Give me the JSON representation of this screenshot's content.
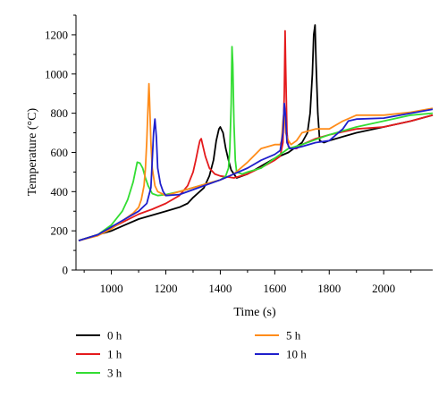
{
  "chart_data": {
    "type": "line",
    "title": "",
    "xlabel": "Time (s)",
    "ylabel": "Temperature (°C)",
    "xlim": [
      870,
      2180
    ],
    "ylim": [
      0,
      1300
    ],
    "xticks": [
      1000,
      1200,
      1400,
      1600,
      1800,
      2000
    ],
    "yticks": [
      0,
      200,
      400,
      600,
      800,
      1000,
      1200
    ],
    "grid": false,
    "legend_position": "bottom",
    "series": [
      {
        "name": "0 h",
        "color": "#000000",
        "x": [
          880,
          950,
          1000,
          1050,
          1100,
          1150,
          1200,
          1250,
          1280,
          1300,
          1340,
          1360,
          1375,
          1385,
          1395,
          1400,
          1410,
          1420,
          1430,
          1440,
          1460,
          1500,
          1550,
          1600,
          1650,
          1700,
          1720,
          1730,
          1738,
          1743,
          1748,
          1752,
          1758,
          1765,
          1780,
          1800,
          1900,
          2000,
          2100,
          2180
        ],
        "y": [
          150,
          180,
          200,
          230,
          260,
          280,
          300,
          320,
          340,
          370,
          420,
          480,
          560,
          660,
          720,
          730,
          700,
          620,
          560,
          510,
          470,
          490,
          530,
          570,
          600,
          650,
          700,
          800,
          1000,
          1200,
          1250,
          1050,
          800,
          660,
          650,
          660,
          700,
          730,
          760,
          790
        ]
      },
      {
        "name": "1 h",
        "color": "#e41a1c",
        "x": [
          880,
          950,
          1000,
          1050,
          1100,
          1150,
          1200,
          1250,
          1280,
          1300,
          1310,
          1320,
          1325,
          1330,
          1335,
          1345,
          1360,
          1380,
          1400,
          1450,
          1500,
          1560,
          1600,
          1620,
          1630,
          1635,
          1638,
          1640,
          1645,
          1650,
          1660,
          1680,
          1700,
          1750,
          1800,
          1900,
          2000,
          2100,
          2180
        ],
        "y": [
          150,
          180,
          215,
          250,
          285,
          310,
          340,
          380,
          430,
          500,
          560,
          630,
          660,
          670,
          640,
          580,
          520,
          490,
          480,
          470,
          490,
          530,
          560,
          580,
          650,
          900,
          1220,
          1050,
          700,
          630,
          620,
          620,
          640,
          670,
          690,
          720,
          730,
          760,
          790
        ]
      },
      {
        "name": "3 h",
        "color": "#33dd33",
        "x": [
          880,
          950,
          1000,
          1040,
          1060,
          1080,
          1095,
          1105,
          1115,
          1125,
          1135,
          1150,
          1170,
          1200,
          1250,
          1300,
          1350,
          1400,
          1420,
          1430,
          1435,
          1440,
          1443,
          1446,
          1450,
          1455,
          1460,
          1480,
          1500,
          1550,
          1600,
          1650,
          1700,
          1800,
          1900,
          2000,
          2100,
          2180
        ],
        "y": [
          150,
          180,
          230,
          300,
          360,
          450,
          550,
          545,
          520,
          470,
          430,
          390,
          380,
          385,
          400,
          420,
          440,
          460,
          480,
          520,
          620,
          850,
          1140,
          1050,
          750,
          560,
          500,
          490,
          500,
          520,
          570,
          620,
          640,
          690,
          730,
          760,
          790,
          800
        ]
      },
      {
        "name": "5 h",
        "color": "#ff8c1a",
        "x": [
          880,
          950,
          1000,
          1050,
          1080,
          1100,
          1110,
          1120,
          1125,
          1130,
          1135,
          1138,
          1140,
          1145,
          1150,
          1160,
          1170,
          1200,
          1250,
          1300,
          1350,
          1400,
          1450,
          1500,
          1550,
          1600,
          1620,
          1625,
          1630,
          1635,
          1640,
          1650,
          1660,
          1680,
          1700,
          1750,
          1800,
          1850,
          1900,
          2000,
          2100,
          2180
        ],
        "y": [
          150,
          175,
          210,
          260,
          290,
          320,
          360,
          430,
          520,
          660,
          850,
          950,
          880,
          650,
          520,
          430,
          400,
          380,
          400,
          420,
          440,
          460,
          490,
          550,
          620,
          640,
          640,
          660,
          760,
          820,
          700,
          660,
          640,
          660,
          700,
          720,
          720,
          760,
          790,
          790,
          805,
          825
        ]
      },
      {
        "name": "10 h",
        "color": "#1f1fcc",
        "x": [
          880,
          950,
          1000,
          1050,
          1100,
          1130,
          1145,
          1155,
          1160,
          1165,
          1170,
          1180,
          1190,
          1200,
          1250,
          1300,
          1350,
          1400,
          1450,
          1500,
          1550,
          1600,
          1620,
          1630,
          1635,
          1640,
          1645,
          1655,
          1670,
          1700,
          1750,
          1800,
          1850,
          1870,
          1900,
          2000,
          2100,
          2180
        ],
        "y": [
          150,
          180,
          220,
          260,
          300,
          340,
          420,
          700,
          770,
          680,
          520,
          440,
          400,
          380,
          385,
          410,
          435,
          460,
          490,
          520,
          560,
          590,
          610,
          700,
          850,
          780,
          650,
          620,
          620,
          630,
          650,
          660,
          720,
          760,
          770,
          775,
          800,
          820
        ]
      }
    ]
  }
}
